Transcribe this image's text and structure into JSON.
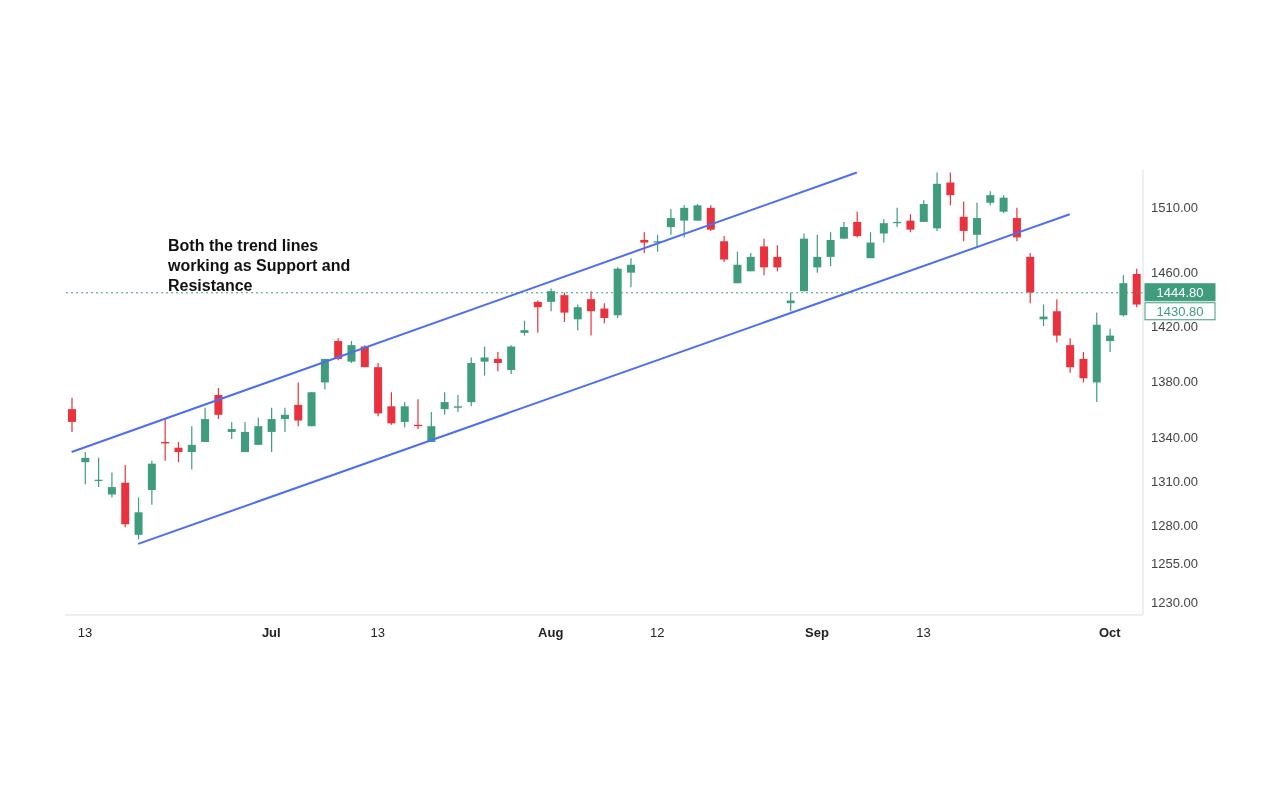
{
  "chart_data": {
    "type": "candlestick",
    "categories": [
      null,
      "13",
      null,
      null,
      null,
      null,
      null,
      null,
      null,
      null,
      null,
      null,
      null,
      null,
      null,
      "Jul",
      null,
      null,
      null,
      null,
      null,
      null,
      null,
      "13",
      null,
      null,
      null,
      null,
      null,
      null,
      null,
      null,
      null,
      null,
      null,
      null,
      "Aug",
      null,
      null,
      null,
      null,
      null,
      null,
      null,
      "12",
      null,
      null,
      null,
      null,
      null,
      null,
      null,
      null,
      null,
      null,
      null,
      "Sep",
      null,
      null,
      null,
      null,
      null,
      null,
      null,
      "13",
      null,
      null,
      null,
      null,
      null,
      null,
      null,
      null,
      null,
      null,
      null,
      null,
      null,
      "Oct",
      null,
      null
    ],
    "ohlc": [
      [
        1360,
        1368,
        1344,
        1351
      ],
      [
        1323,
        1330,
        1308,
        1326
      ],
      [
        1311,
        1326,
        1306,
        1311
      ],
      [
        1301,
        1316,
        1299,
        1306
      ],
      [
        1309,
        1321,
        1279,
        1281
      ],
      [
        1274,
        1299,
        1271,
        1289
      ],
      [
        1304,
        1324,
        1294,
        1322
      ],
      [
        1337,
        1353,
        1324,
        1336
      ],
      [
        1333,
        1337,
        1323,
        1330
      ],
      [
        1330,
        1348,
        1318,
        1335
      ],
      [
        1337,
        1361,
        1337,
        1353
      ],
      [
        1370,
        1375,
        1353,
        1356
      ],
      [
        1344,
        1351,
        1339,
        1346
      ],
      [
        1330,
        1351,
        1330,
        1344
      ],
      [
        1335,
        1354,
        1335,
        1348
      ],
      [
        1344,
        1361,
        1330,
        1353
      ],
      [
        1353,
        1361,
        1344,
        1356
      ],
      [
        1363,
        1379,
        1348,
        1352
      ],
      [
        1348,
        1372,
        1348,
        1372
      ],
      [
        1379,
        1396,
        1374,
        1396
      ],
      [
        1409,
        1411,
        1395,
        1396
      ],
      [
        1394,
        1409,
        1393,
        1406
      ],
      [
        1405,
        1406,
        1390,
        1390
      ],
      [
        1390,
        1393,
        1355,
        1357
      ],
      [
        1362,
        1372,
        1349,
        1350
      ],
      [
        1351,
        1365,
        1347,
        1362
      ],
      [
        1349,
        1367,
        1346,
        1348
      ],
      [
        1337,
        1358,
        1337,
        1348
      ],
      [
        1360,
        1372,
        1356,
        1365
      ],
      [
        1361,
        1370,
        1358,
        1362
      ],
      [
        1365,
        1397,
        1362,
        1393
      ],
      [
        1394,
        1405,
        1384,
        1397
      ],
      [
        1396,
        1401,
        1387,
        1393
      ],
      [
        1388,
        1406,
        1385,
        1405
      ],
      [
        1415,
        1424,
        1413,
        1417
      ],
      [
        1438,
        1439,
        1415,
        1434
      ],
      [
        1438,
        1448,
        1431,
        1446
      ],
      [
        1443,
        1445,
        1423,
        1430
      ],
      [
        1425,
        1436,
        1417,
        1434
      ],
      [
        1440,
        1446,
        1413,
        1431
      ],
      [
        1433,
        1437,
        1422,
        1426
      ],
      [
        1428,
        1464,
        1426,
        1463
      ],
      [
        1460,
        1471,
        1449,
        1466
      ],
      [
        1485,
        1491,
        1475,
        1483
      ],
      [
        1483,
        1489,
        1476,
        1484
      ],
      [
        1495,
        1509,
        1489,
        1502
      ],
      [
        1500,
        1512,
        1487,
        1510
      ],
      [
        1500,
        1513,
        1500,
        1512
      ],
      [
        1510,
        1512,
        1492,
        1493
      ],
      [
        1484,
        1488,
        1468,
        1470
      ],
      [
        1452,
        1476,
        1452,
        1466
      ],
      [
        1461,
        1475,
        1461,
        1472
      ],
      [
        1480,
        1486,
        1458,
        1464
      ],
      [
        1472,
        1481,
        1461,
        1464
      ],
      [
        1437,
        1445,
        1431,
        1439
      ],
      [
        1446,
        1490,
        1446,
        1486
      ],
      [
        1464,
        1489,
        1460,
        1472
      ],
      [
        1472,
        1491,
        1465,
        1485
      ],
      [
        1486,
        1499,
        1486,
        1495
      ],
      [
        1499,
        1507,
        1487,
        1488
      ],
      [
        1471,
        1491,
        1471,
        1483
      ],
      [
        1490,
        1501,
        1483,
        1498
      ],
      [
        1498,
        1510,
        1495,
        1499
      ],
      [
        1500,
        1505,
        1491,
        1493
      ],
      [
        1499,
        1516,
        1499,
        1513
      ],
      [
        1494,
        1538,
        1492,
        1529
      ],
      [
        1530,
        1538,
        1512,
        1520
      ],
      [
        1503,
        1515,
        1484,
        1492
      ],
      [
        1489,
        1514,
        1479,
        1502
      ],
      [
        1514,
        1523,
        1512,
        1520
      ],
      [
        1507,
        1520,
        1506,
        1518
      ],
      [
        1502,
        1510,
        1484,
        1487
      ],
      [
        1472,
        1475,
        1437,
        1445
      ],
      [
        1425,
        1436,
        1420,
        1427
      ],
      [
        1431,
        1440,
        1408,
        1413
      ],
      [
        1406,
        1411,
        1386,
        1390
      ],
      [
        1396,
        1401,
        1379,
        1382
      ],
      [
        1379,
        1430,
        1365,
        1421
      ],
      [
        1409,
        1418,
        1401,
        1413
      ],
      [
        1428,
        1458,
        1427,
        1452
      ],
      [
        1459,
        1463,
        1434,
        1436
      ]
    ],
    "colors": [
      "#e8333f",
      "#3f9c7d",
      "#3f9c7d",
      "#3f9c7d",
      "#e8333f",
      "#3f9c7d",
      "#3f9c7d",
      "#e8333f",
      "#e8333f",
      "#3f9c7d",
      "#3f9c7d",
      "#e8333f",
      "#3f9c7d",
      "#3f9c7d",
      "#3f9c7d",
      "#3f9c7d",
      "#3f9c7d",
      "#e8333f",
      "#3f9c7d",
      "#3f9c7d",
      "#e8333f",
      "#3f9c7d",
      "#e8333f",
      "#e8333f",
      "#e8333f",
      "#3f9c7d",
      "#e8333f",
      "#3f9c7d",
      "#3f9c7d",
      "#3f9c7d",
      "#3f9c7d",
      "#3f9c7d",
      "#e8333f",
      "#3f9c7d",
      "#3f9c7d",
      "#e8333f",
      "#3f9c7d",
      "#e8333f",
      "#3f9c7d",
      "#e8333f",
      "#e8333f",
      "#3f9c7d",
      "#3f9c7d",
      "#e8333f",
      "#3f9c7d",
      "#3f9c7d",
      "#3f9c7d",
      "#3f9c7d",
      "#e8333f",
      "#e8333f",
      "#3f9c7d",
      "#3f9c7d",
      "#e8333f",
      "#e8333f",
      "#3f9c7d",
      "#3f9c7d",
      "#3f9c7d",
      "#3f9c7d",
      "#3f9c7d",
      "#e8333f",
      "#3f9c7d",
      "#3f9c7d",
      "#3f9c7d",
      "#e8333f",
      "#3f9c7d",
      "#3f9c7d",
      "#e8333f",
      "#e8333f",
      "#3f9c7d",
      "#3f9c7d",
      "#3f9c7d",
      "#e8333f",
      "#e8333f",
      "#3f9c7d",
      "#e8333f",
      "#e8333f",
      "#e8333f",
      "#3f9c7d",
      "#3f9c7d",
      "#3f9c7d",
      "#e8333f"
    ],
    "series": [
      {
        "type": "line",
        "color": "#4c6ef5",
        "values": [
          1330,
          null,
          null,
          null,
          null,
          null,
          null,
          null,
          null,
          null,
          null,
          null,
          null,
          null,
          null,
          null,
          null,
          null,
          null,
          null,
          null,
          null,
          null,
          null,
          null,
          null,
          null,
          null,
          null,
          null,
          null,
          null,
          null,
          null,
          null,
          null,
          null,
          null,
          null,
          null,
          null,
          null,
          null,
          null,
          null,
          null,
          null,
          null,
          null,
          null,
          null,
          null,
          null,
          null,
          null,
          null,
          null,
          null,
          null,
          1538,
          null,
          null,
          null,
          null,
          null,
          null,
          null,
          null,
          null,
          null,
          null,
          null,
          null,
          null,
          null,
          null,
          null,
          null,
          null,
          null,
          null
        ]
      },
      {
        "type": "line",
        "color": "#4c6ef5",
        "values": [
          null,
          null,
          null,
          null,
          null,
          1268,
          null,
          null,
          null,
          null,
          null,
          null,
          null,
          null,
          null,
          null,
          null,
          null,
          null,
          null,
          null,
          null,
          null,
          null,
          null,
          null,
          null,
          null,
          null,
          null,
          null,
          null,
          null,
          null,
          null,
          null,
          null,
          null,
          null,
          null,
          null,
          null,
          null,
          null,
          null,
          null,
          null,
          null,
          null,
          null,
          null,
          null,
          null,
          null,
          null,
          null,
          null,
          null,
          null,
          null,
          null,
          null,
          null,
          null,
          null,
          null,
          null,
          null,
          null,
          null,
          null,
          null,
          null,
          null,
          null,
          1505,
          null,
          null,
          null,
          null,
          null
        ]
      }
    ],
    "log": true,
    "ylim": [
      1222,
      1540
    ],
    "yticks": [
      {
        "value": 1230,
        "label": "1230.00"
      },
      {
        "value": 1255,
        "label": "1255.00"
      },
      {
        "value": 1280,
        "label": "1280.00"
      },
      {
        "value": 1310,
        "label": "1310.00"
      },
      {
        "value": 1340,
        "label": "1340.00"
      },
      {
        "value": 1380,
        "label": "1380.00"
      },
      {
        "value": 1420,
        "label": "1420.00"
      },
      {
        "value": 1460,
        "label": "1460.00"
      },
      {
        "value": 1510,
        "label": "1510.00"
      }
    ],
    "ref_lines": [
      {
        "axis": "y",
        "value": 1444.8,
        "label": "1444.80",
        "color": "#3f9c7d",
        "line_style": "dotted"
      }
    ],
    "annotations": [
      "Both the trend lines working as Support and Resistance",
      "1430.80"
    ]
  }
}
